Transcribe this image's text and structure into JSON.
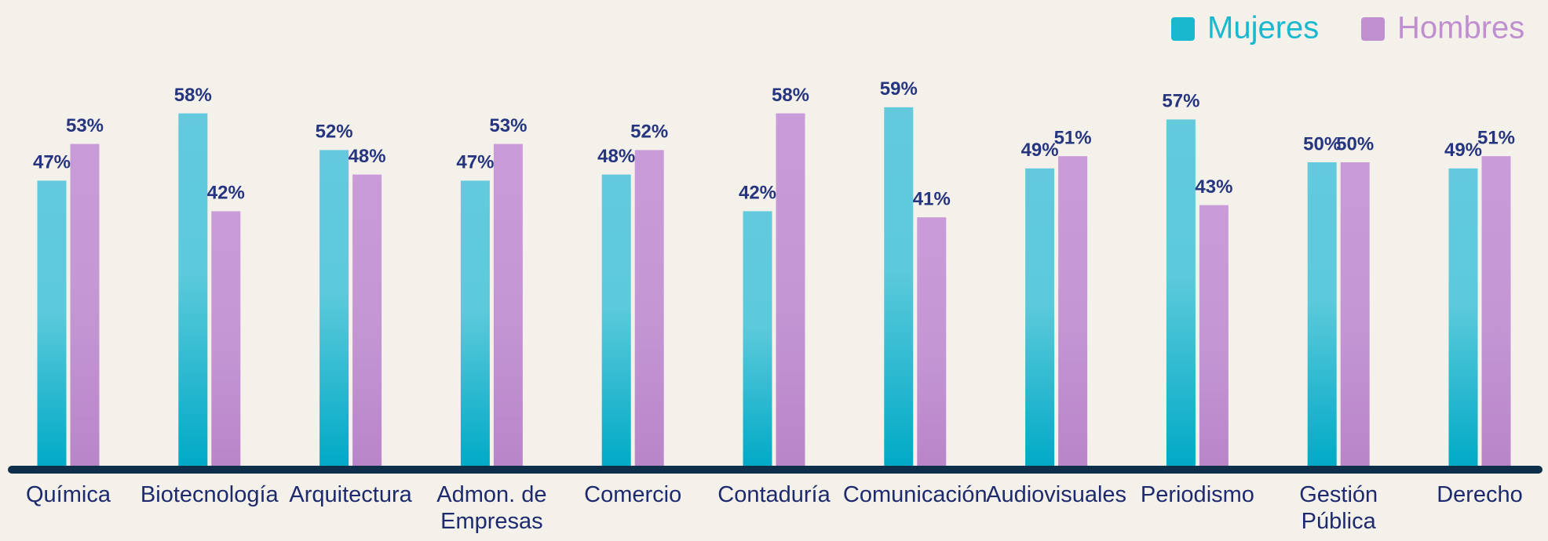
{
  "chart_data": {
    "type": "bar",
    "categories": [
      "Química",
      "Biotecnología",
      "Arquitectura",
      "Admon. de\nEmpresas",
      "Comercio",
      "Contaduría",
      "Comunicación",
      "Audiovisuales",
      "Periodismo",
      "Gestión\nPública",
      "Derecho"
    ],
    "series": [
      {
        "name": "Mujeres",
        "color": "#1ab8cf",
        "values": [
          47,
          58,
          52,
          47,
          48,
          42,
          59,
          49,
          57,
          50,
          49
        ],
        "value_labels": [
          "47%",
          "58%",
          "52%",
          "47%",
          "48%",
          "42%",
          "59%",
          "49%",
          "57%",
          "50%",
          "49%"
        ]
      },
      {
        "name": "Hombres",
        "color": "#c08fd0",
        "values": [
          53,
          42,
          48,
          53,
          52,
          58,
          41,
          51,
          43,
          50,
          51
        ],
        "value_labels": [
          "53%",
          "42%",
          "48%",
          "53%",
          "52%",
          "58%",
          "41%",
          "51%",
          "43%",
          "50%",
          "51%"
        ]
      }
    ],
    "legend": "top-right"
  }
}
